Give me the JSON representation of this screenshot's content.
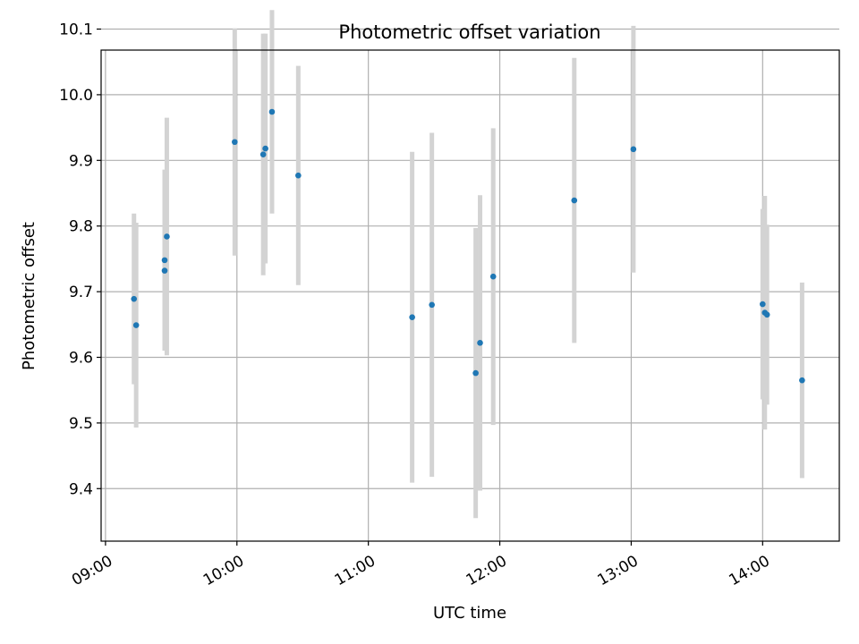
{
  "chart_data": {
    "type": "scatter",
    "title": "Photometric offset variation",
    "xlabel": "UTC time",
    "ylabel": "Photometric offset",
    "xlim": [
      "08:58",
      "14:35"
    ],
    "ylim": [
      9.32,
      10.068
    ],
    "grid": true,
    "x_ticks": [
      "09:00",
      "10:00",
      "11:00",
      "12:00",
      "13:00",
      "14:00"
    ],
    "y_ticks": [
      9.4,
      9.5,
      9.6,
      9.7,
      9.8,
      9.9,
      10.0,
      10.1
    ],
    "y_tick_labels": [
      "9.4",
      "9.5",
      "9.6",
      "9.7",
      "9.8",
      "9.9",
      "10.0",
      "10.1"
    ],
    "marker_color": "#1f77b4",
    "errorbar_color": "#d3d3d3",
    "points": [
      {
        "x": "09:13",
        "y": 9.689,
        "err": 0.13
      },
      {
        "x": "09:14",
        "y": 9.649,
        "err": 0.156
      },
      {
        "x": "09:27",
        "y": 9.732,
        "err": 0.121
      },
      {
        "x": "09:27",
        "y": 9.748,
        "err": 0.138
      },
      {
        "x": "09:28",
        "y": 9.784,
        "err": 0.181
      },
      {
        "x": "09:59",
        "y": 9.928,
        "err": 0.173
      },
      {
        "x": "10:12",
        "y": 9.909,
        "err": 0.184
      },
      {
        "x": "10:13",
        "y": 9.918,
        "err": 0.175
      },
      {
        "x": "10:16",
        "y": 9.974,
        "err": 0.155
      },
      {
        "x": "10:28",
        "y": 9.877,
        "err": 0.167
      },
      {
        "x": "11:20",
        "y": 9.661,
        "err": 0.252
      },
      {
        "x": "11:29",
        "y": 9.68,
        "err": 0.262
      },
      {
        "x": "11:49",
        "y": 9.576,
        "err": 0.221
      },
      {
        "x": "11:51",
        "y": 9.622,
        "err": 0.225
      },
      {
        "x": "11:57",
        "y": 9.723,
        "err": 0.226
      },
      {
        "x": "12:34",
        "y": 9.839,
        "err": 0.217
      },
      {
        "x": "13:01",
        "y": 9.917,
        "err": 0.188
      },
      {
        "x": "14:00",
        "y": 9.681,
        "err": 0.145
      },
      {
        "x": "14:01",
        "y": 9.668,
        "err": 0.178
      },
      {
        "x": "14:02",
        "y": 9.665,
        "err": 0.137
      },
      {
        "x": "14:18",
        "y": 9.565,
        "err": 0.149
      }
    ]
  }
}
